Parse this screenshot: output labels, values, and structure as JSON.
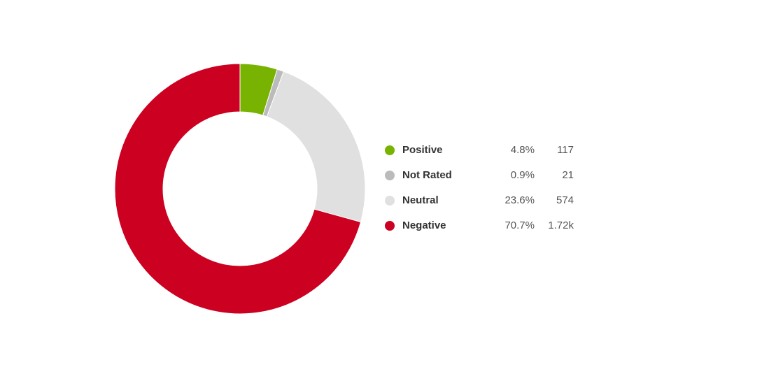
{
  "chart_data": {
    "type": "pie",
    "donut": true,
    "categories": [
      "Positive",
      "Not Rated",
      "Neutral",
      "Negative"
    ],
    "values": [
      117,
      21,
      574,
      1720
    ],
    "percent_labels": [
      "4.8%",
      "0.9%",
      "23.6%",
      "70.7%"
    ],
    "count_labels": [
      "117",
      "21",
      "574",
      "1.72k"
    ],
    "colors": [
      "#77b300",
      "#bbbbbb",
      "#e0e0e0",
      "#cc0020"
    ],
    "legend_position": "right"
  }
}
